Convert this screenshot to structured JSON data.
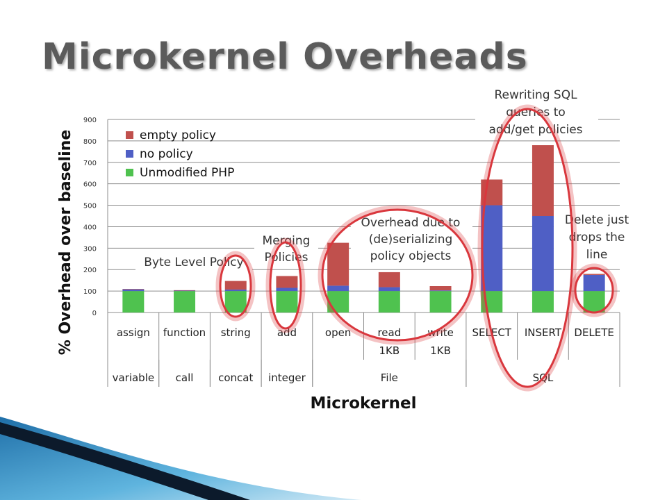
{
  "slide": {
    "title": "Microkernel Overheads"
  },
  "colors": {
    "empty_policy": "#c0504d",
    "no_policy": "#4f5fc5",
    "unmodified_php": "#4fc24f",
    "highlight_ring": "#d9373d"
  },
  "chart_data": {
    "type": "bar",
    "stacked": true,
    "xlabel": "Microkernel",
    "ylabel": "% Overhead over baseline",
    "ylim": [
      0,
      900
    ],
    "yticks": [
      0,
      100,
      200,
      300,
      400,
      500,
      600,
      700,
      800,
      900
    ],
    "grid": true,
    "legend_position": "top-left",
    "categories": [
      {
        "line1": "assign",
        "line2": ""
      },
      {
        "line1": "function",
        "line2": ""
      },
      {
        "line1": "string",
        "line2": ""
      },
      {
        "line1": "add",
        "line2": ""
      },
      {
        "line1": "open",
        "line2": ""
      },
      {
        "line1": "read",
        "line2": "1KB"
      },
      {
        "line1": "write",
        "line2": "1KB"
      },
      {
        "line1": "SELECT",
        "line2": ""
      },
      {
        "line1": "INSERT",
        "line2": ""
      },
      {
        "line1": "DELETE",
        "line2": ""
      }
    ],
    "groups": [
      {
        "label": "variable",
        "span": [
          0,
          0
        ]
      },
      {
        "label": "call",
        "span": [
          1,
          1
        ]
      },
      {
        "label": "concat",
        "span": [
          2,
          2
        ]
      },
      {
        "label": "integer",
        "span": [
          3,
          3
        ]
      },
      {
        "label": "File",
        "span": [
          4,
          6
        ]
      },
      {
        "label": "SQL",
        "span": [
          7,
          9
        ]
      }
    ],
    "series": [
      {
        "name": "empty policy",
        "color": "#c0504d",
        "values": [
          2,
          2,
          40,
          55,
          200,
          70,
          20,
          120,
          330,
          5
        ]
      },
      {
        "name": "no policy",
        "color": "#4f5fc5",
        "values": [
          8,
          2,
          7,
          15,
          25,
          18,
          3,
          400,
          350,
          75
        ]
      },
      {
        "name": "Unmodified PHP",
        "color": "#4fc24f",
        "values": [
          100,
          100,
          100,
          100,
          100,
          100,
          100,
          100,
          100,
          100
        ]
      }
    ],
    "annotations": [
      {
        "lines": [
          "Byte Level Policy"
        ]
      },
      {
        "lines": [
          "Merging",
          "Policies"
        ]
      },
      {
        "lines": [
          "Overhead due to",
          "(de)serializing",
          "policy objects"
        ]
      },
      {
        "lines": [
          "Rewriting SQL",
          "queries to",
          "add/get policies"
        ]
      },
      {
        "lines": [
          "Delete just",
          "drops the",
          "line"
        ]
      }
    ]
  }
}
